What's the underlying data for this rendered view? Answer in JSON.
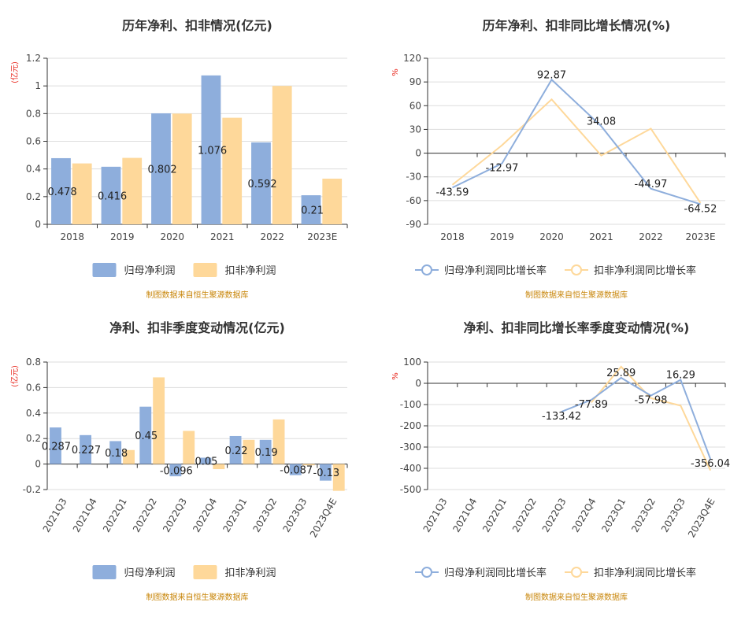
{
  "source_note": "制图数据来自恒生聚源数据库",
  "colors": {
    "series_a": "#8eaedc",
    "series_b": "#fed89a",
    "grid": "#dddddd",
    "axis": "#333333",
    "unit": "#e8261c",
    "source": "#c8860a"
  },
  "chart_data": [
    {
      "type": "bar",
      "title": "历年净利、扣非情况(亿元)",
      "ylabel": "(亿元)",
      "categories": [
        "2018",
        "2019",
        "2020",
        "2021",
        "2022",
        "2023E"
      ],
      "ylim": [
        0,
        1.2
      ],
      "yticks": [
        0,
        0.2,
        0.4,
        0.6,
        0.8,
        1,
        1.2
      ],
      "ytick_labels": [
        "0",
        "0.2",
        "0.4",
        "0.6",
        "0.8",
        "1",
        "1.2"
      ],
      "series": [
        {
          "name": "归母净利润",
          "values": [
            0.478,
            0.416,
            0.802,
            1.076,
            0.592,
            0.21
          ],
          "labels": [
            "0.478",
            "0.416",
            "0.802",
            "1.076",
            "0.592",
            "0.21"
          ]
        },
        {
          "name": "扣非净利润",
          "values": [
            0.44,
            0.48,
            0.8,
            0.77,
            1.0,
            0.33
          ],
          "labels": [
            "",
            "",
            "",
            "",
            "",
            ""
          ]
        }
      ],
      "legend": "bottom",
      "grid": true
    },
    {
      "type": "line",
      "title": "历年净利、扣非同比增长情况(%)",
      "ylabel": "%",
      "categories": [
        "2018",
        "2019",
        "2020",
        "2021",
        "2022",
        "2023E"
      ],
      "ylim": [
        -90,
        120
      ],
      "yticks": [
        -90,
        -60,
        -30,
        0,
        30,
        60,
        90,
        120
      ],
      "ytick_labels": [
        "-90",
        "-60",
        "-30",
        "0",
        "30",
        "60",
        "90",
        "120"
      ],
      "series": [
        {
          "name": "归母净利润同比增长率",
          "values": [
            -43.59,
            -12.97,
            92.87,
            34.08,
            -44.97,
            -64.52
          ],
          "labels": [
            "-43.59",
            "-12.97",
            "92.87",
            "34.08",
            "-44.97",
            "-64.52"
          ]
        },
        {
          "name": "扣非净利润同比增长率",
          "values": [
            -40,
            10,
            68,
            -3,
            31,
            -63
          ],
          "labels": [
            "",
            "",
            "",
            "",
            "",
            ""
          ]
        }
      ],
      "legend": "bottom",
      "grid": true
    },
    {
      "type": "bar",
      "title": "净利、扣非季度变动情况(亿元)",
      "ylabel": "(亿元)",
      "categories": [
        "2021Q3",
        "2021Q4",
        "2022Q1",
        "2022Q2",
        "2022Q3",
        "2022Q4",
        "2023Q1",
        "2023Q2",
        "2023Q3",
        "2023Q4E"
      ],
      "ylim": [
        -0.2,
        0.8
      ],
      "yticks": [
        -0.2,
        0,
        0.2,
        0.4,
        0.6,
        0.8
      ],
      "ytick_labels": [
        "-0.2",
        "0",
        "0.2",
        "0.4",
        "0.6",
        "0.8"
      ],
      "series": [
        {
          "name": "归母净利润",
          "values": [
            0.287,
            0.227,
            0.18,
            0.45,
            -0.096,
            0.05,
            0.22,
            0.19,
            -0.087,
            -0.13
          ],
          "labels": [
            "0.287",
            "0.227",
            "0.18",
            "0.45",
            "-0.096",
            "0.05",
            "0.22",
            "0.19",
            "-0.087",
            "-0.13"
          ]
        },
        {
          "name": "扣非净利润",
          "values": [
            0,
            0,
            0.11,
            0.68,
            0.26,
            -0.04,
            0.19,
            0.35,
            -0.01,
            -0.21
          ],
          "labels": [
            "",
            "",
            "",
            "",
            "",
            "",
            "",
            "",
            "",
            ""
          ]
        }
      ],
      "legend": "bottom",
      "grid": true
    },
    {
      "type": "line",
      "title": "净利、扣非同比增长率季度变动情况(%)",
      "ylabel": "%",
      "categories": [
        "2021Q3",
        "2021Q4",
        "2022Q1",
        "2022Q2",
        "2022Q3",
        "2022Q4",
        "2023Q1",
        "2023Q2",
        "2023Q3",
        "2023Q4E"
      ],
      "ylim": [
        -500,
        100
      ],
      "yticks": [
        -500,
        -400,
        -300,
        -200,
        -100,
        0,
        100
      ],
      "ytick_labels": [
        "-500",
        "-400",
        "-300",
        "-200",
        "-100",
        "0",
        "100"
      ],
      "series": [
        {
          "name": "归母净利润同比增长率",
          "values": [
            null,
            null,
            null,
            null,
            -133.42,
            -77.89,
            25.89,
            -57.98,
            16.29,
            -356.04
          ],
          "labels": [
            "",
            "",
            "",
            "",
            "-133.42",
            "-77.89",
            "25.89",
            "-57.98",
            "16.29",
            "-356.04"
          ]
        },
        {
          "name": "扣非净利润同比增长率",
          "values": [
            null,
            null,
            null,
            null,
            null,
            -90,
            78,
            -70,
            -105,
            -410
          ],
          "labels": [
            "",
            "",
            "",
            "",
            "",
            "",
            "",
            "",
            "",
            ""
          ]
        }
      ],
      "legend": "bottom",
      "grid": true
    }
  ]
}
